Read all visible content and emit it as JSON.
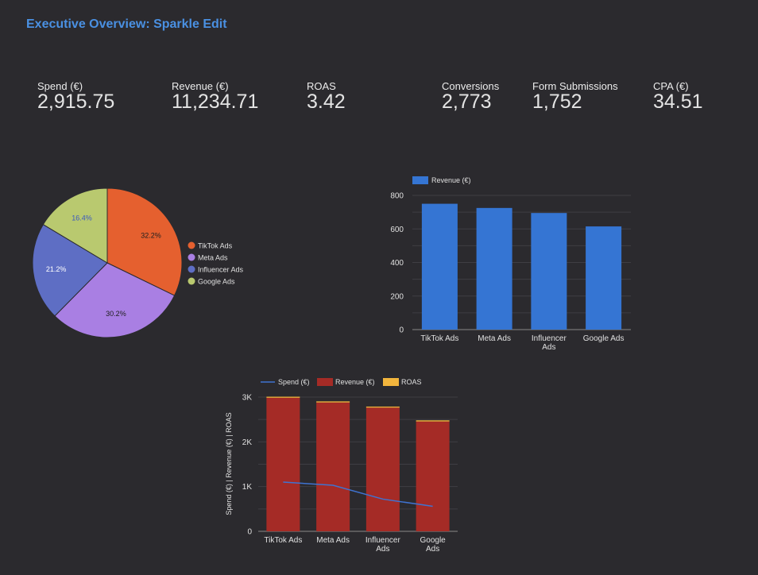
{
  "page_title": "Executive Overview: Sparkle Edit",
  "kpis": [
    {
      "label": "Spend (€)",
      "value": "2,915.75"
    },
    {
      "label": "Revenue (€)",
      "value": "11,234.71"
    },
    {
      "label": "ROAS",
      "value": "3.42"
    },
    {
      "label": "Conversions",
      "value": "2,773"
    },
    {
      "label": "Form Submissions",
      "value": "1,752"
    },
    {
      "label": "CPA (€)",
      "value": "34.51"
    }
  ],
  "chart_data": [
    {
      "type": "pie",
      "title": "",
      "categories": [
        "TikTok Ads",
        "Meta Ads",
        "Influencer Ads",
        "Google Ads"
      ],
      "values": [
        32.2,
        30.2,
        21.2,
        16.4
      ],
      "value_labels": [
        "32.2%",
        "30.2%",
        "21.2%",
        "16.4%"
      ],
      "colors": [
        "#e5602f",
        "#a97fe3",
        "#5e6ec4",
        "#b9c96f"
      ],
      "legend_position": "right"
    },
    {
      "type": "bar",
      "title": "",
      "categories": [
        "TikTok Ads",
        "Meta Ads",
        "Influencer\nAds",
        "Google Ads"
      ],
      "series": [
        {
          "name": "Revenue (€)",
          "values": [
            750,
            725,
            695,
            615
          ],
          "color": "#3575d3"
        }
      ],
      "yticks": [
        "0",
        "200",
        "400",
        "600",
        "800"
      ],
      "ylim": [
        0,
        800
      ],
      "legend_position": "top-left",
      "grid": true
    },
    {
      "type": "bar",
      "title": "",
      "ylabel": "Spend (€) | Revenue (€) | ROAS",
      "categories": [
        "TikTok Ads",
        "Meta Ads",
        "Influencer\nAds",
        "Google\nAds"
      ],
      "series": [
        {
          "name": "Spend (€)",
          "type": "line",
          "values": [
            1100,
            1030,
            720,
            560
          ],
          "color": "#3f73d1"
        },
        {
          "name": "Revenue (€)",
          "type": "bar",
          "values": [
            2985,
            2880,
            2765,
            2455
          ],
          "color": "#a52b26"
        },
        {
          "name": "ROAS",
          "type": "bar",
          "stacked": true,
          "values": [
            3.4,
            3.5,
            3.3,
            3.6
          ],
          "color": "#f2b53d"
        }
      ],
      "yticks": [
        "0",
        "1K",
        "2K",
        "3K"
      ],
      "ylim": [
        0,
        3000
      ],
      "legend_position": "top",
      "grid": true
    }
  ]
}
